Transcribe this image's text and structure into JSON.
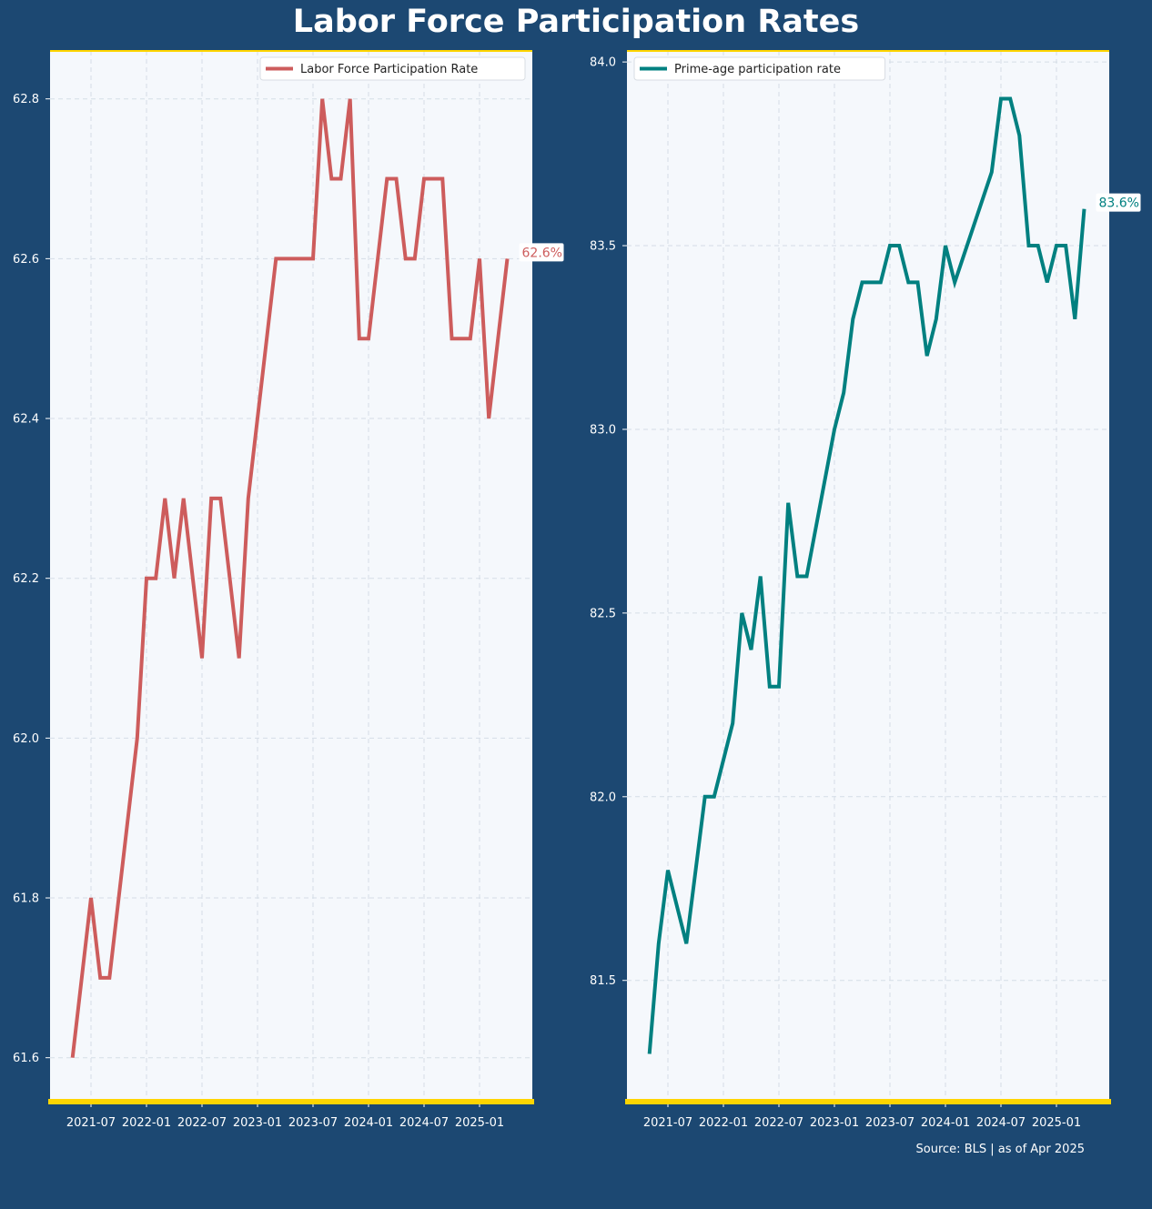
{
  "title": "Labor Force Participation Rates",
  "source_note": "Source: BLS | as of Apr 2025",
  "colors": {
    "background": "#1c4872",
    "plot_background": "#f5f8fc",
    "accent_axis": "#ffd500",
    "series_left": "#cd5c5c",
    "series_right": "#008080"
  },
  "chart_data": [
    {
      "type": "line",
      "x_tick_labels": [
        "2021-07",
        "2022-01",
        "2022-07",
        "2023-01",
        "2023-07",
        "2024-01",
        "2024-07",
        "2025-01"
      ],
      "y_tick_labels": [
        "61.6",
        "61.8",
        "62.0",
        "62.2",
        "62.4",
        "62.6",
        "62.8"
      ],
      "ylim": [
        61.545,
        62.86
      ],
      "grid": true,
      "legend_position": "top-right",
      "series": [
        {
          "name": "Labor Force Participation Rate",
          "color": "#cd5c5c",
          "x": [
            "2021-05",
            "2021-07",
            "2021-08",
            "2021-09",
            "2021-12",
            "2022-01",
            "2022-02",
            "2022-03",
            "2022-04",
            "2022-05",
            "2022-07",
            "2022-08",
            "2022-09",
            "2022-11",
            "2022-12",
            "2023-03",
            "2023-04",
            "2023-05",
            "2023-06",
            "2023-07",
            "2023-08",
            "2023-09",
            "2023-10",
            "2023-11",
            "2023-12",
            "2024-01",
            "2024-03",
            "2024-04",
            "2024-05",
            "2024-06",
            "2024-07",
            "2024-08",
            "2024-09",
            "2024-10",
            "2024-11",
            "2024-12",
            "2025-01",
            "2025-02",
            "2025-03",
            "2025-04"
          ],
          "values": [
            61.6,
            61.8,
            61.7,
            61.7,
            62.0,
            62.2,
            62.2,
            62.3,
            62.2,
            62.3,
            62.1,
            62.3,
            62.3,
            62.1,
            62.3,
            62.6,
            62.6,
            62.6,
            62.6,
            62.6,
            62.8,
            62.7,
            62.7,
            62.8,
            62.5,
            62.5,
            62.7,
            62.7,
            62.6,
            62.6,
            62.7,
            62.7,
            62.7,
            62.5,
            62.5,
            62.5,
            62.6,
            62.4,
            62.5,
            62.6
          ]
        }
      ],
      "end_label": "62.6%"
    },
    {
      "type": "line",
      "x_tick_labels": [
        "2021-07",
        "2022-01",
        "2022-07",
        "2023-01",
        "2023-07",
        "2024-01",
        "2024-07",
        "2025-01"
      ],
      "y_tick_labels": [
        "81.5",
        "82.0",
        "82.5",
        "83.0",
        "83.5",
        "84.0"
      ],
      "ylim": [
        81.17,
        84.03
      ],
      "grid": true,
      "legend_position": "top-left",
      "series": [
        {
          "name": "Prime-age participation rate",
          "color": "#008080",
          "x": [
            "2021-05",
            "2021-06",
            "2021-07",
            "2021-09",
            "2021-11",
            "2021-12",
            "2022-02",
            "2022-03",
            "2022-04",
            "2022-05",
            "2022-06",
            "2022-07",
            "2022-08",
            "2022-09",
            "2022-10",
            "2023-01",
            "2023-02",
            "2023-03",
            "2023-04",
            "2023-05",
            "2023-06",
            "2023-07",
            "2023-08",
            "2023-09",
            "2023-10",
            "2023-11",
            "2023-12",
            "2024-01",
            "2024-02",
            "2024-06",
            "2024-07",
            "2024-08",
            "2024-09",
            "2024-10",
            "2024-11",
            "2024-12",
            "2025-01",
            "2025-02",
            "2025-03"
          ],
          "values": [
            81.3,
            81.6,
            81.8,
            81.6,
            82.0,
            82.0,
            82.2,
            82.5,
            82.4,
            82.6,
            82.3,
            82.3,
            82.8,
            82.6,
            82.6,
            83.0,
            83.1,
            83.3,
            83.4,
            83.4,
            83.4,
            83.5,
            83.5,
            83.4,
            83.4,
            83.2,
            83.3,
            83.5,
            83.4,
            83.7,
            83.9,
            83.9,
            83.8,
            83.5,
            83.5,
            83.4,
            83.5,
            83.5,
            83.3
          ],
          "end_x": "2025-04",
          "end_value": 83.6
        }
      ],
      "end_label": "83.6%"
    }
  ]
}
